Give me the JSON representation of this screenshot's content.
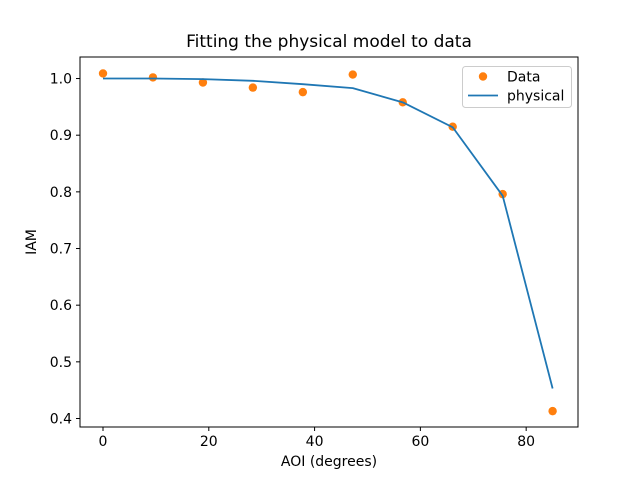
{
  "chart_data": {
    "type": "scatter+line",
    "title": "Fitting the physical model to data",
    "xlabel": "AOI (degrees)",
    "ylabel": "IAM",
    "x": [
      0.0,
      9.44,
      18.89,
      28.33,
      37.78,
      47.22,
      56.67,
      66.11,
      75.56,
      85.0
    ],
    "series": [
      {
        "name": "Data",
        "type": "scatter",
        "color": "#ff7f0e",
        "values": [
          1.009,
          1.002,
          0.993,
          0.984,
          0.976,
          1.007,
          0.958,
          0.915,
          0.796,
          0.413
        ]
      },
      {
        "name": "physical",
        "type": "line",
        "color": "#1f77b4",
        "values": [
          1.0,
          1.0,
          0.999,
          0.996,
          0.99,
          0.983,
          0.958,
          0.914,
          0.793,
          0.453
        ]
      }
    ],
    "xticks": [
      "0",
      "20",
      "40",
      "60",
      "80"
    ],
    "yticks": [
      "0.4",
      "0.5",
      "0.6",
      "0.7",
      "0.8",
      "0.9",
      "1.0"
    ],
    "xlim": [
      -4.35,
      89.8
    ],
    "ylim": [
      0.385,
      1.038
    ],
    "legend_position": "upper right",
    "grid": false,
    "colors": {
      "background": "#ffffff",
      "spine": "#000000",
      "text": "#000000",
      "legend_border": "#cccccc"
    }
  }
}
